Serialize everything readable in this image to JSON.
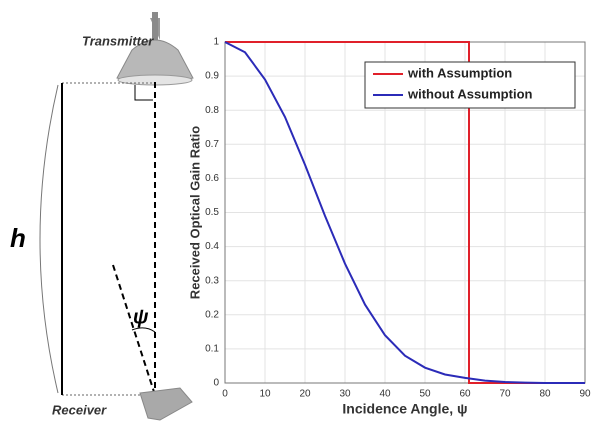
{
  "diagram": {
    "transmitter": "Transmitter",
    "receiver": "Receiver",
    "height": "h",
    "angle": "ψ"
  },
  "chart_data": {
    "type": "line",
    "xlabel": "Incidence Angle, ψ",
    "ylabel": "Received Optical Gain Ratio",
    "xlim": [
      0,
      90
    ],
    "ylim": [
      0,
      1
    ],
    "xticks": [
      0,
      10,
      20,
      30,
      40,
      50,
      60,
      70,
      80,
      90
    ],
    "yticks": [
      0,
      0.1,
      0.2,
      0.3,
      0.4,
      0.5,
      0.6,
      0.7,
      0.8,
      0.9,
      1
    ],
    "grid": true,
    "legend": "upper right",
    "series": [
      {
        "name": "with Assumption",
        "color": "#e0202a",
        "x": [
          0,
          61,
          61,
          90
        ],
        "values": [
          1,
          1,
          0,
          0
        ]
      },
      {
        "name": "without Assumption",
        "color": "#2b2bb8",
        "x": [
          0,
          5,
          10,
          15,
          20,
          25,
          30,
          35,
          40,
          45,
          50,
          55,
          60,
          65,
          70,
          75,
          80,
          85,
          90
        ],
        "values": [
          1,
          0.97,
          0.89,
          0.78,
          0.64,
          0.49,
          0.35,
          0.23,
          0.14,
          0.08,
          0.045,
          0.025,
          0.015,
          0.007,
          0.003,
          0.001,
          0,
          0,
          0
        ]
      }
    ]
  }
}
